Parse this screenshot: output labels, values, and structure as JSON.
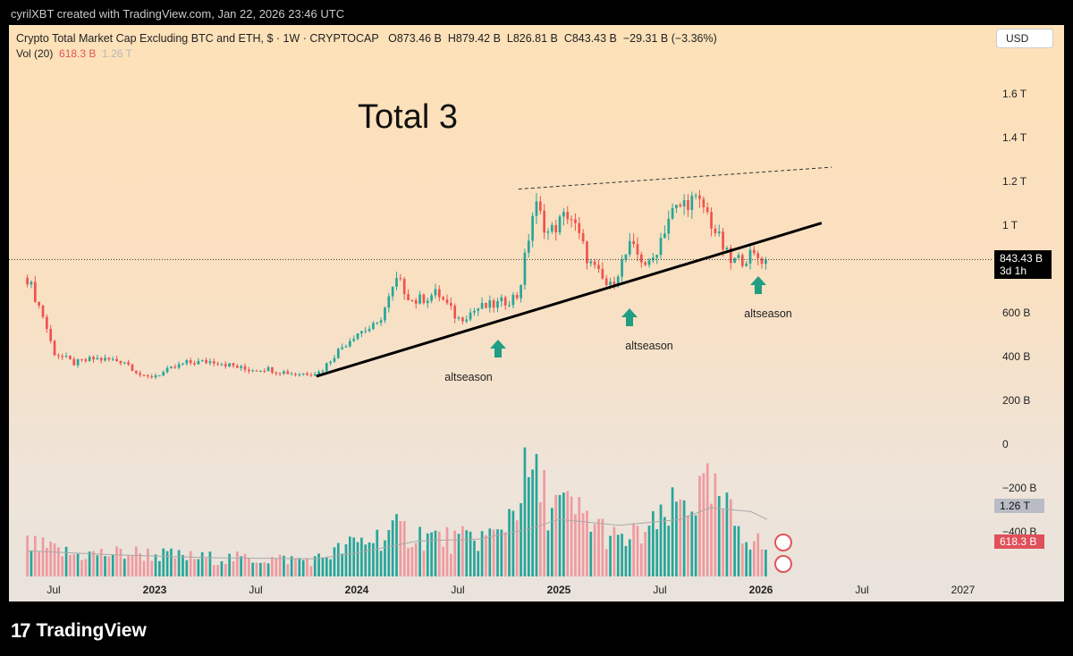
{
  "credit": "cyrilXBT created with TradingView.com, Jan 22, 2026 23:46 UTC",
  "legend": {
    "symbol": "Crypto Total Market Cap Excluding BTC and ETH, $ · 1W · CRYPTOCAP",
    "open": "O873.46 B",
    "high": "H879.42 B",
    "low": "L826.81 B",
    "close": "C843.43 B",
    "change": "−29.31 B (−3.36%)",
    "vol_label": "Vol (20)",
    "vol_value": "618.3 B",
    "vol_ma": "1.26 T"
  },
  "currency": "USD",
  "title_annotation": "Total 3",
  "annotations": [
    "altseason",
    "altseason",
    "altseason"
  ],
  "price_label": {
    "price": "843.43 B",
    "countdown": "3d 1h"
  },
  "volume_labels": {
    "ma": "1.26 T",
    "current": "618.3 B"
  },
  "footer": {
    "brand": "TradingView"
  },
  "colors": {
    "up": "#26a69a",
    "down": "#ef5350",
    "vol_up": "#26a69a",
    "vol_down": "#ef9aa0",
    "trendline": "#000000"
  },
  "chart_data": {
    "type": "candlestick",
    "timeframe": "1W",
    "y_ticks": [
      "1.6 T",
      "1.4 T",
      "1.2 T",
      "1 T",
      "600 B",
      "400 B",
      "200 B",
      "0",
      "−200 B",
      "−400 B"
    ],
    "x_ticks": [
      {
        "label": "Jul",
        "bold": false
      },
      {
        "label": "2023",
        "bold": true
      },
      {
        "label": "Jul",
        "bold": false
      },
      {
        "label": "2024",
        "bold": true
      },
      {
        "label": "Jul",
        "bold": false
      },
      {
        "label": "2025",
        "bold": true
      },
      {
        "label": "Jul",
        "bold": false
      },
      {
        "label": "2026",
        "bold": true
      },
      {
        "label": "Jul",
        "bold": false
      },
      {
        "label": "2027",
        "bold": false
      }
    ],
    "current_price_B": 843.43,
    "close_path_B": [
      [
        2022.37,
        760
      ],
      [
        2022.45,
        580
      ],
      [
        2022.5,
        420
      ],
      [
        2022.6,
        370
      ],
      [
        2022.7,
        390
      ],
      [
        2022.85,
        380
      ],
      [
        2022.95,
        300
      ],
      [
        2023.05,
        330
      ],
      [
        2023.15,
        370
      ],
      [
        2023.3,
        380
      ],
      [
        2023.45,
        340
      ],
      [
        2023.55,
        345
      ],
      [
        2023.7,
        320
      ],
      [
        2023.82,
        330
      ],
      [
        2023.9,
        420
      ],
      [
        2024.0,
        510
      ],
      [
        2024.1,
        540
      ],
      [
        2024.2,
        750
      ],
      [
        2024.28,
        650
      ],
      [
        2024.4,
        690
      ],
      [
        2024.5,
        570
      ],
      [
        2024.6,
        620
      ],
      [
        2024.7,
        640
      ],
      [
        2024.8,
        680
      ],
      [
        2024.88,
        1100
      ],
      [
        2024.95,
        960
      ],
      [
        2025.05,
        1060
      ],
      [
        2025.15,
        830
      ],
      [
        2025.25,
        710
      ],
      [
        2025.35,
        900
      ],
      [
        2025.45,
        810
      ],
      [
        2025.55,
        1050
      ],
      [
        2025.65,
        1120
      ],
      [
        2025.72,
        1080
      ],
      [
        2025.78,
        960
      ],
      [
        2025.85,
        830
      ],
      [
        2025.95,
        860
      ],
      [
        2026.03,
        843
      ]
    ],
    "volume_path_B": [
      [
        2022.37,
        160
      ],
      [
        2022.6,
        110
      ],
      [
        2022.9,
        120
      ],
      [
        2023.2,
        95
      ],
      [
        2023.5,
        90
      ],
      [
        2023.8,
        85
      ],
      [
        2024.0,
        170
      ],
      [
        2024.2,
        230
      ],
      [
        2024.5,
        180
      ],
      [
        2024.7,
        210
      ],
      [
        2024.85,
        520
      ],
      [
        2024.95,
        380
      ],
      [
        2025.15,
        290
      ],
      [
        2025.3,
        170
      ],
      [
        2025.5,
        260
      ],
      [
        2025.62,
        390
      ],
      [
        2025.75,
        420
      ],
      [
        2025.85,
        300
      ],
      [
        2025.95,
        200
      ],
      [
        2026.03,
        130
      ]
    ],
    "volume_ma_B": [
      [
        2022.37,
        130
      ],
      [
        2022.8,
        110
      ],
      [
        2023.3,
        95
      ],
      [
        2023.8,
        90
      ],
      [
        2024.0,
        120
      ],
      [
        2024.3,
        180
      ],
      [
        2024.6,
        190
      ],
      [
        2024.85,
        240
      ],
      [
        2025.0,
        290
      ],
      [
        2025.3,
        260
      ],
      [
        2025.6,
        290
      ],
      [
        2025.75,
        350
      ],
      [
        2025.95,
        330
      ],
      [
        2026.03,
        290
      ]
    ],
    "trendline_support_B": [
      [
        2023.8,
        310
      ],
      [
        2026.3,
        1010
      ]
    ],
    "resistance_dashed_B": [
      [
        2024.8,
        1165
      ],
      [
        2026.35,
        1265
      ]
    ]
  }
}
